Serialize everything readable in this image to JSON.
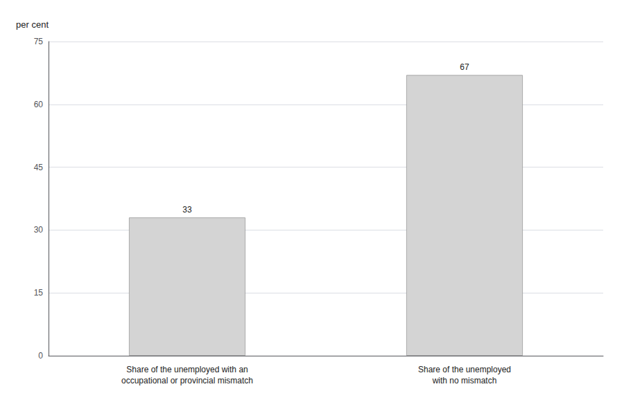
{
  "chart_data": {
    "type": "bar",
    "categories": [
      "Share of the unemployed with an\noccupational or provincial mismatch",
      "Share of the unemployed\nwith no mismatch"
    ],
    "values": [
      33,
      67
    ],
    "color": "#d4d4d4",
    "ylabel": "per cent",
    "ylim": [
      0,
      75
    ],
    "yticks": [
      0,
      15,
      30,
      45,
      60,
      75
    ],
    "grid": true,
    "data_labels": true
  }
}
